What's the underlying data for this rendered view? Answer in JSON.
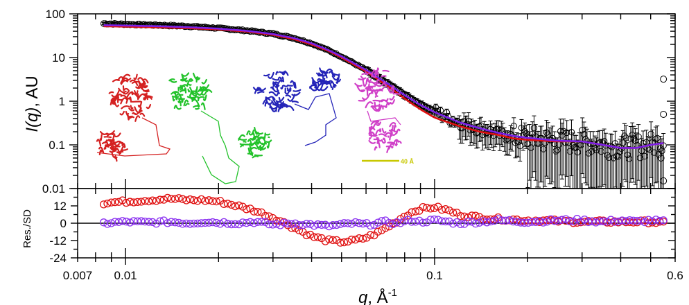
{
  "chart_data": [
    {
      "type": "scatter",
      "title": "",
      "xlabel_main": "q",
      "xlabel_unit": "Å",
      "xlabel_exp": "-1",
      "ylabel_italic": "I(q)",
      "ylabel_rest": ", AU",
      "x_scale": "log",
      "y_scale": "log",
      "xlim": [
        0.007,
        0.6
      ],
      "ylim": [
        0.01,
        100
      ],
      "x_ticks": [
        {
          "value": 0.007,
          "label": "0.007"
        },
        {
          "value": 0.01,
          "label": "0.01"
        },
        {
          "value": 0.1,
          "label": "0.1"
        },
        {
          "value": 0.6,
          "label": "0.6"
        }
      ],
      "y_ticks": [
        {
          "value": 100,
          "label": "100"
        },
        {
          "value": 10,
          "label": "10"
        },
        {
          "value": 1,
          "label": "1"
        },
        {
          "value": 0.1,
          "label": "0.1"
        },
        {
          "value": 0.01,
          "label": "0.01"
        }
      ],
      "series": [
        {
          "role": "experimental",
          "color": "#000000",
          "marker": "open-circle",
          "error_bars": true,
          "x": [
            0.0085,
            0.01,
            0.013,
            0.016,
            0.02,
            0.025,
            0.03,
            0.035,
            0.04,
            0.045,
            0.05,
            0.06,
            0.07,
            0.08,
            0.09,
            0.1,
            0.12,
            0.14,
            0.16,
            0.18,
            0.2,
            0.25,
            0.3,
            0.35,
            0.4,
            0.45,
            0.5,
            0.55
          ],
          "y": [
            60,
            58,
            55,
            52,
            47,
            41,
            35,
            28,
            21,
            15,
            10.5,
            5.2,
            2.6,
            1.4,
            0.85,
            0.58,
            0.33,
            0.23,
            0.18,
            0.15,
            0.14,
            0.12,
            0.12,
            0.1,
            0.09,
            0.09,
            0.1,
            0.12
          ]
        },
        {
          "role": "fit",
          "color": "#e01010",
          "x": [
            0.0085,
            0.01,
            0.013,
            0.016,
            0.02,
            0.025,
            0.03,
            0.035,
            0.04,
            0.045,
            0.05,
            0.06,
            0.07,
            0.08,
            0.09,
            0.1,
            0.12,
            0.14,
            0.16,
            0.18,
            0.2,
            0.25,
            0.3,
            0.35,
            0.4,
            0.45,
            0.5,
            0.55
          ],
          "y": [
            52,
            51,
            49,
            47,
            44,
            39,
            33,
            26.5,
            20,
            14.5,
            10,
            4.8,
            2.3,
            1.15,
            0.65,
            0.42,
            0.27,
            0.2,
            0.17,
            0.14,
            0.13,
            0.12,
            0.12,
            0.1,
            0.085,
            0.085,
            0.1,
            0.11
          ]
        },
        {
          "role": "fit",
          "color": "#7a1fe8",
          "x": [
            0.0085,
            0.01,
            0.013,
            0.016,
            0.02,
            0.025,
            0.03,
            0.035,
            0.04,
            0.045,
            0.05,
            0.06,
            0.07,
            0.08,
            0.09,
            0.1,
            0.12,
            0.14,
            0.16,
            0.18,
            0.2,
            0.25,
            0.3,
            0.35,
            0.4,
            0.45,
            0.5,
            0.55
          ],
          "y": [
            55,
            54,
            52,
            49.5,
            46,
            40.5,
            34.5,
            28,
            21.2,
            15.2,
            10.6,
            5.2,
            2.6,
            1.38,
            0.82,
            0.56,
            0.33,
            0.24,
            0.19,
            0.16,
            0.145,
            0.125,
            0.12,
            0.1,
            0.085,
            0.085,
            0.1,
            0.11
          ]
        }
      ],
      "inset": {
        "scale_bar_label": "40 Å",
        "scale_bar_color": "#c8c800",
        "models": [
          {
            "color": "#d42020"
          },
          {
            "color": "#22c22a"
          },
          {
            "color": "#2424b8"
          },
          {
            "color": "#d040c8"
          }
        ]
      }
    },
    {
      "type": "scatter",
      "title": "",
      "ylabel": "Res./SD",
      "x_scale": "log",
      "xlim": [
        0.007,
        0.6
      ],
      "ylim": [
        -24,
        24
      ],
      "y_ticks": [
        {
          "value": 12,
          "label": "12"
        },
        {
          "value": 0,
          "label": "0"
        },
        {
          "value": -12,
          "label": "-12"
        },
        {
          "value": -24,
          "label": "-24"
        }
      ],
      "zero_line": true,
      "series": [
        {
          "color": "#e01010",
          "marker": "open-circle",
          "x": [
            0.0085,
            0.01,
            0.012,
            0.014,
            0.016,
            0.018,
            0.02,
            0.023,
            0.026,
            0.03,
            0.035,
            0.04,
            0.045,
            0.05,
            0.055,
            0.06,
            0.065,
            0.07,
            0.075,
            0.08,
            0.085,
            0.09,
            0.1,
            0.11,
            0.12,
            0.14,
            0.16,
            0.2,
            0.25,
            0.3,
            0.35,
            0.4,
            0.45,
            0.5,
            0.55
          ],
          "y": [
            14,
            15,
            16,
            17,
            16,
            16,
            15,
            12,
            9,
            4,
            -3,
            -9,
            -12,
            -13,
            -12,
            -10,
            -7,
            -3,
            1,
            5,
            8,
            10,
            11,
            9,
            6,
            4,
            3,
            2,
            1.5,
            1,
            1,
            1,
            1,
            1,
            0
          ]
        },
        {
          "color": "#8a30f0",
          "marker": "open-circle",
          "x": [
            0.0085,
            0.01,
            0.012,
            0.014,
            0.016,
            0.018,
            0.02,
            0.023,
            0.026,
            0.03,
            0.035,
            0.04,
            0.045,
            0.05,
            0.055,
            0.06,
            0.065,
            0.07,
            0.075,
            0.08,
            0.085,
            0.09,
            0.1,
            0.11,
            0.12,
            0.14,
            0.16,
            0.2,
            0.25,
            0.3,
            0.35,
            0.4,
            0.45,
            0.5,
            0.55
          ],
          "y": [
            0,
            1,
            0.5,
            1,
            0,
            1,
            0.5,
            0,
            1,
            -1,
            0,
            -1,
            -2,
            -1,
            0,
            -1,
            0,
            1,
            0,
            1,
            2,
            1,
            2,
            1,
            0,
            1,
            2,
            1,
            2,
            2,
            1,
            2,
            1,
            2,
            1
          ]
        }
      ]
    }
  ]
}
